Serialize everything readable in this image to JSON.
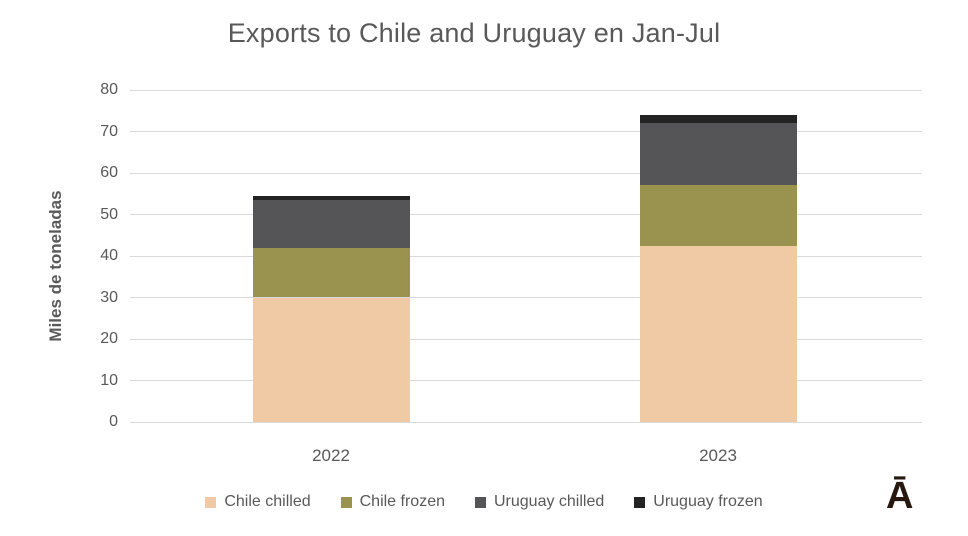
{
  "title": {
    "text": "Exports to Chile and Uruguay en Jan-Jul"
  },
  "logo": {
    "glyph": "Ā"
  },
  "colors": {
    "background": "#ffffff",
    "title_text": "#595959",
    "axis_text": "#595959",
    "gridline": "#d9d9d9",
    "logo": "#26180e"
  },
  "chart_data": {
    "type": "bar",
    "stacked": true,
    "title": "Exports to Chile and Uruguay en Jan-Jul",
    "ylabel": "Miles de toneladas",
    "xlabel": "",
    "categories": [
      "2022",
      "2023"
    ],
    "series": [
      {
        "name": "Chile chilled",
        "color": "#f0caa4",
        "values": [
          30,
          42.5
        ]
      },
      {
        "name": "Chile frozen",
        "color": "#9a9350",
        "values": [
          12,
          14.5
        ]
      },
      {
        "name": "Uruguay chilled",
        "color": "#555457",
        "values": [
          11.5,
          15
        ]
      },
      {
        "name": "Uruguay frozen",
        "color": "#232323",
        "values": [
          1,
          2
        ]
      }
    ],
    "ylim": [
      0,
      80
    ],
    "yticks": [
      0,
      10,
      20,
      30,
      40,
      50,
      60,
      70,
      80
    ],
    "grid": true,
    "legend_position": "bottom"
  }
}
